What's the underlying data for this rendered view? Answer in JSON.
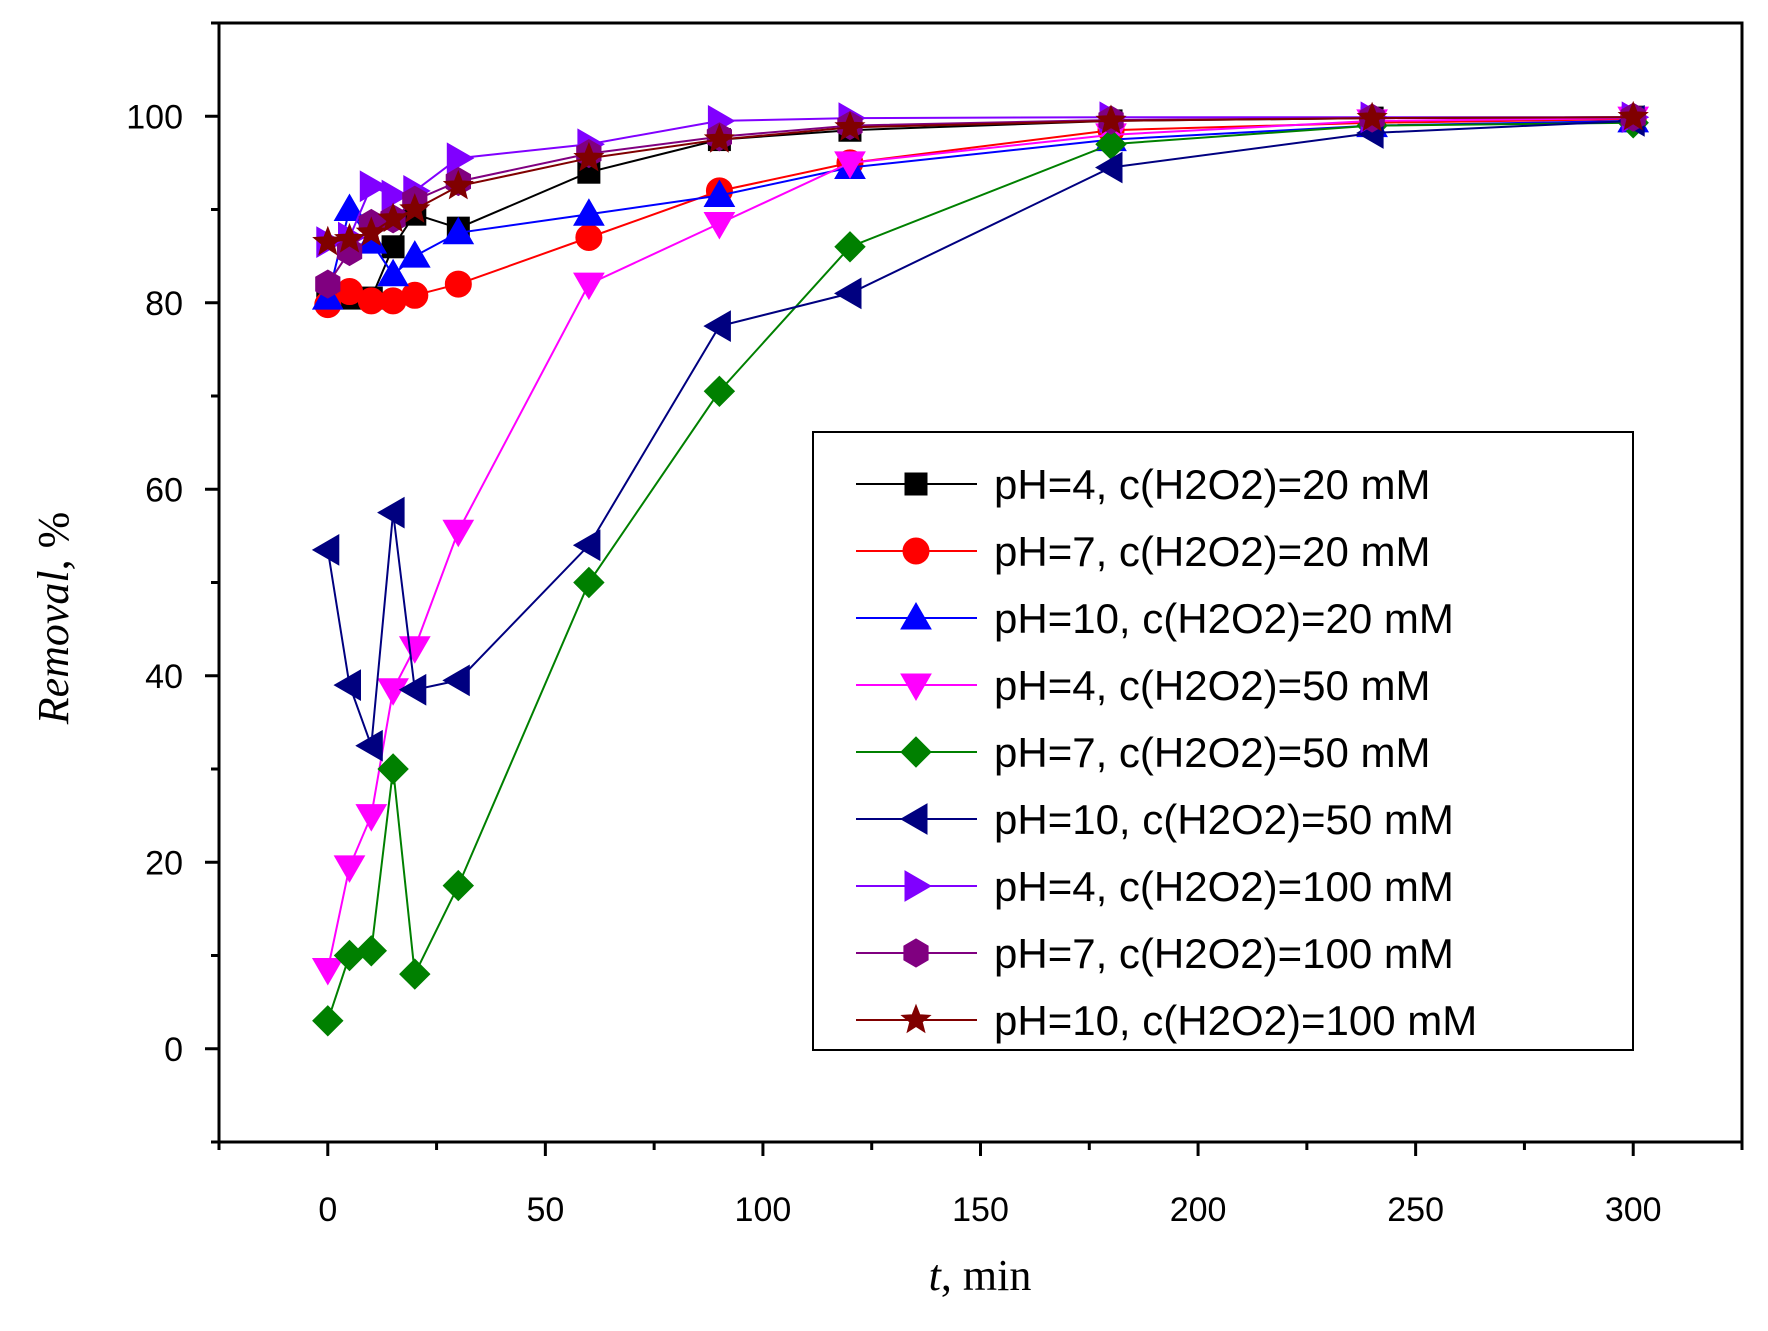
{
  "chart_data": {
    "type": "line",
    "title": "",
    "xlabel": {
      "italic": "t",
      "rest": ", min"
    },
    "ylabel": {
      "italic": "Removal",
      "rest": ", %"
    },
    "xlim": [
      -25,
      325
    ],
    "ylim": [
      -10,
      110
    ],
    "xticks": [
      0,
      50,
      100,
      150,
      200,
      250,
      300
    ],
    "yticks": [
      0,
      20,
      40,
      60,
      80,
      100
    ],
    "grid": false,
    "legend_position": "center-right",
    "x": [
      0,
      5,
      10,
      15,
      20,
      30,
      60,
      90,
      120,
      180,
      240,
      300
    ],
    "series": [
      {
        "name": "pH=4, c(H2O2)=20 mM",
        "color": "#000000",
        "marker": "square",
        "values": [
          80.5,
          80.5,
          80.5,
          86,
          89.5,
          88,
          94,
          97.5,
          98.5,
          99.5,
          99.8,
          99.9
        ]
      },
      {
        "name": "pH=7, c(H2O2)=20 mM",
        "color": "#ff0000",
        "marker": "circle",
        "values": [
          79.8,
          81.2,
          80.2,
          80.2,
          80.8,
          82,
          87,
          92,
          95,
          98.5,
          99.3,
          99.7
        ]
      },
      {
        "name": "pH=10, c(H2O2)=20 mM",
        "color": "#0000ff",
        "marker": "triangle-up",
        "values": [
          80.5,
          90,
          86.5,
          83,
          85,
          87.5,
          89.5,
          91.5,
          94.5,
          97.5,
          99,
          99.5
        ]
      },
      {
        "name": "pH=4, c(H2O2)=50 mM",
        "color": "#ff00ff",
        "marker": "triangle-down",
        "values": [
          8.5,
          19.5,
          25,
          38.5,
          43,
          55.5,
          82,
          88.5,
          95,
          98,
          99.5,
          99.8
        ]
      },
      {
        "name": "pH=7, c(H2O2)=50 mM",
        "color": "#008000",
        "marker": "diamond",
        "values": [
          3,
          10,
          10.5,
          30,
          8,
          17.5,
          50,
          70.5,
          86,
          97,
          99,
          99.3
        ]
      },
      {
        "name": "pH=10, c(H2O2)=50 mM",
        "color": "#000080",
        "marker": "triangle-left",
        "values": [
          53.5,
          39,
          32.5,
          57.5,
          38.5,
          39.5,
          54,
          77.5,
          81,
          94.5,
          98.2,
          99.5
        ]
      },
      {
        "name": "pH=4, c(H2O2)=100 mM",
        "color": "#8000ff",
        "marker": "triangle-right",
        "values": [
          86.5,
          87,
          92.5,
          91.5,
          92,
          95.5,
          97,
          99.5,
          99.8,
          99.9,
          99.9,
          99.9
        ]
      },
      {
        "name": "pH=7, c(H2O2)=100 mM",
        "color": "#800080",
        "marker": "hexagon",
        "values": [
          82,
          85.5,
          88.5,
          89,
          91,
          93,
          96,
          97.8,
          99,
          99.6,
          99.8,
          99.9
        ]
      },
      {
        "name": "pH=10, c(H2O2)=100 mM",
        "color": "#800000",
        "marker": "star",
        "values": [
          86.5,
          86.8,
          87.5,
          89,
          90,
          92.5,
          95.5,
          97.5,
          98.8,
          99.5,
          99.8,
          99.9
        ]
      }
    ]
  }
}
